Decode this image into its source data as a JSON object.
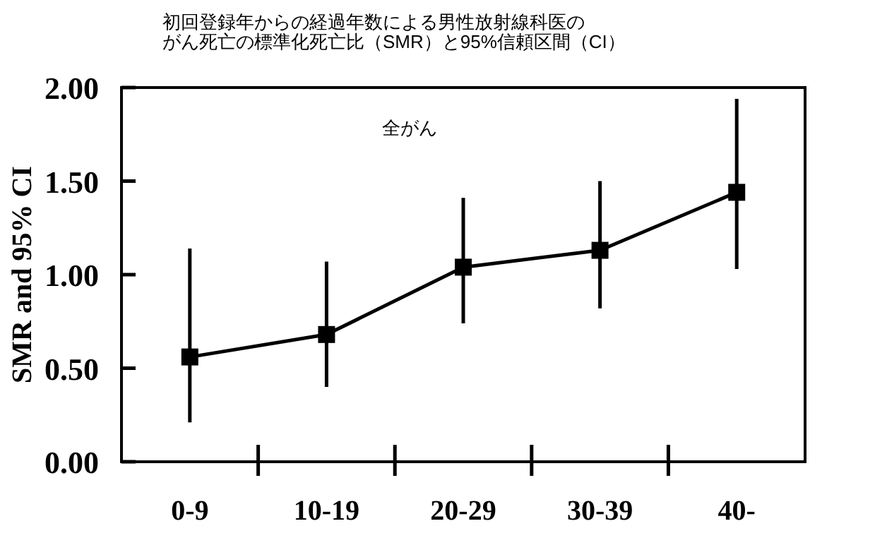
{
  "chart_data": {
    "type": "line",
    "title": "初回登録年からの経過年数による男性放射線科医の",
    "subtitle": "がん死亡の標準化死亡比（SMR）と95%信頼区間（CI）",
    "ylabel": "SMR and 95% CI",
    "annotations": [
      "全がん"
    ],
    "categories": [
      "0-9",
      "10-19",
      "20-29",
      "30-39",
      "40-"
    ],
    "series": [
      {
        "color": "#000000",
        "values": [
          0.56,
          0.68,
          1.04,
          1.13,
          1.44
        ],
        "errors": [
          [
            0.21,
            1.14
          ],
          [
            0.4,
            1.07
          ],
          [
            0.74,
            1.41
          ],
          [
            0.82,
            1.5
          ],
          [
            1.03,
            1.94
          ]
        ]
      }
    ],
    "ylim": [
      0,
      2
    ],
    "yticks": [
      {
        "value": 0,
        "label": "0.00"
      },
      {
        "value": 0.5,
        "label": "0.50"
      },
      {
        "value": 1,
        "label": "1.00"
      },
      {
        "value": 1.5,
        "label": "1.50"
      },
      {
        "value": 2,
        "label": "2.00"
      }
    ],
    "grid": false,
    "marker": "square",
    "line_style": "solid"
  }
}
